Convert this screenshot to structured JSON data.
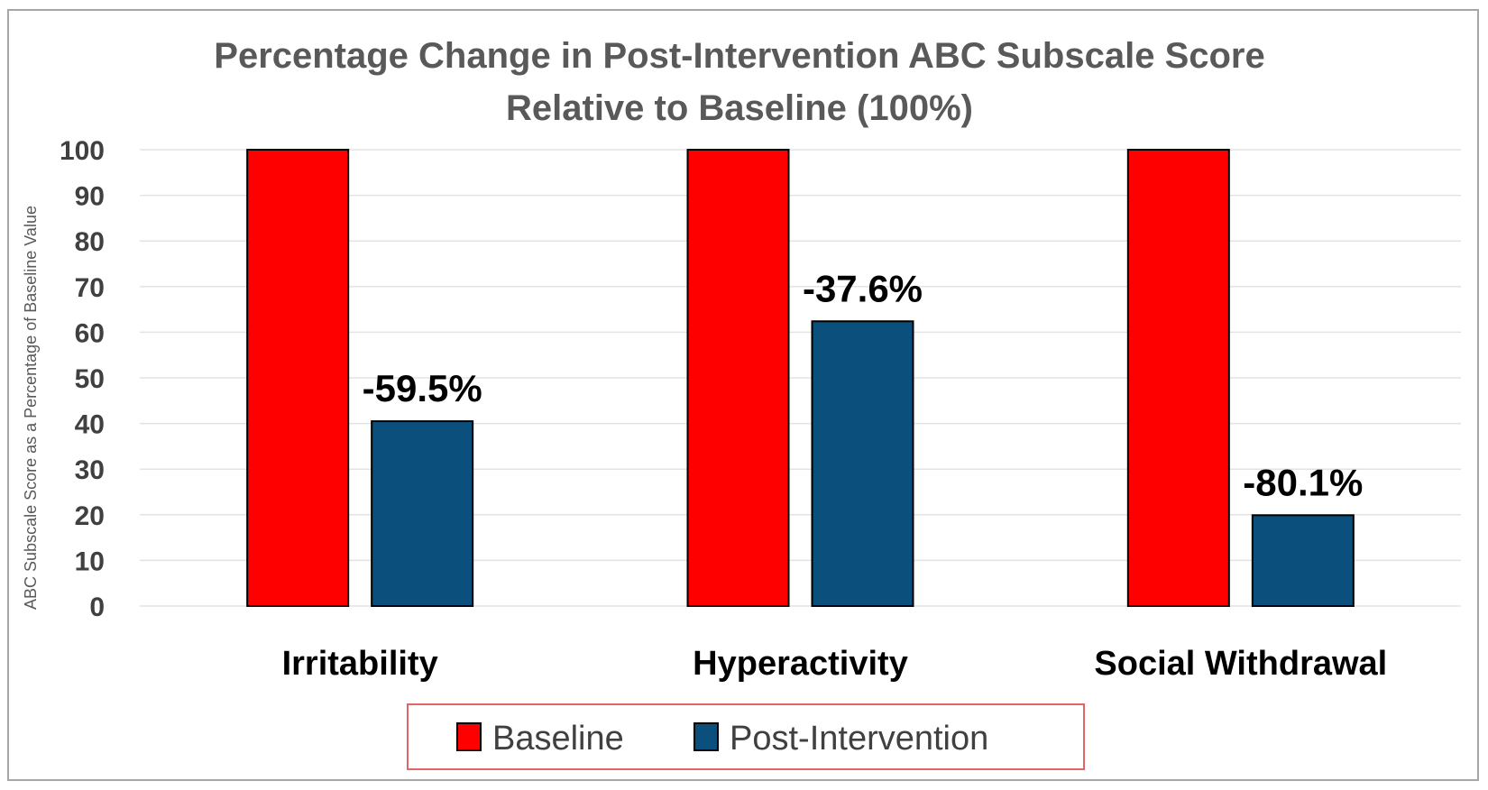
{
  "chart_data": {
    "type": "bar",
    "title_lines": [
      "Percentage Change in Post-Intervention ABC Subscale Score",
      "Relative to Baseline (100%)"
    ],
    "ylabel": "ABC Subscale Score as a Percentage of Baseline Value",
    "xlabel": "",
    "ylim": [
      0,
      100
    ],
    "yticks": [
      "0",
      "10",
      "20",
      "30",
      "40",
      "50",
      "60",
      "70",
      "80",
      "90",
      "100"
    ],
    "categories": [
      "Irritability",
      "Hyperactivity",
      "Social Withdrawal"
    ],
    "series": [
      {
        "name": "Baseline",
        "values": [
          100,
          100,
          100
        ],
        "color": "#ff0000"
      },
      {
        "name": "Post-Intervention",
        "values": [
          40.5,
          62.4,
          19.9
        ],
        "color": "#0b4f7c"
      }
    ],
    "data_labels": [
      "-59.5%",
      "-37.6%",
      "-80.1%"
    ],
    "grid": true,
    "legend_position": "bottom",
    "legend_border_color": "#e06666"
  }
}
